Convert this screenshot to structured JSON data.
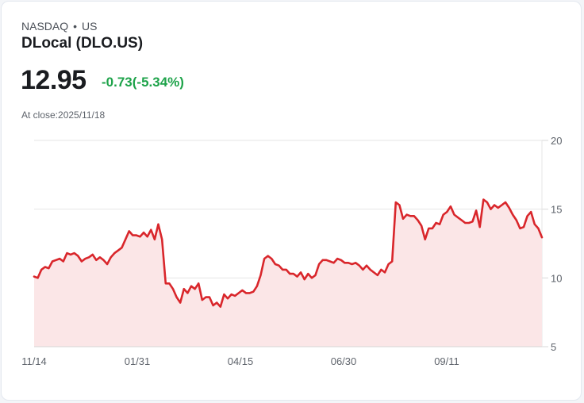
{
  "header": {
    "exchange": "NASDAQ",
    "separator": "•",
    "region": "US",
    "name": "DLocal (DLO.US)",
    "price": "12.95",
    "change": "-0.73(-5.34%)",
    "close_label": "At close:2025/11/18"
  },
  "colors": {
    "line": "#d9262b",
    "fill": "#fbe6e7",
    "change": "#1ea34a"
  },
  "chart_data": {
    "type": "area",
    "title": "DLocal (DLO.US)",
    "xlabel": "",
    "ylabel": "",
    "x_ticks": [
      "11/14",
      "01/31",
      "04/15",
      "06/30",
      "09/11"
    ],
    "y_ticks": [
      5,
      10,
      15,
      20
    ],
    "ylim": [
      5,
      20
    ],
    "grid": true,
    "y_axis_position": "right",
    "series": [
      {
        "name": "DLO.US",
        "values": [
          10.1,
          10.0,
          10.6,
          10.8,
          10.7,
          11.2,
          11.3,
          11.4,
          11.2,
          11.8,
          11.7,
          11.8,
          11.6,
          11.2,
          11.4,
          11.5,
          11.7,
          11.3,
          11.5,
          11.3,
          11.0,
          11.5,
          11.8,
          12.0,
          12.2,
          12.8,
          13.4,
          13.1,
          13.1,
          13.0,
          13.3,
          13.0,
          13.5,
          12.8,
          13.9,
          12.8,
          9.6,
          9.6,
          9.2,
          8.6,
          8.2,
          9.2,
          8.9,
          9.4,
          9.2,
          9.6,
          8.4,
          8.6,
          8.6,
          8.0,
          8.2,
          7.9,
          8.8,
          8.5,
          8.8,
          8.7,
          8.9,
          9.1,
          8.9,
          8.9,
          9.0,
          9.4,
          10.2,
          11.4,
          11.6,
          11.4,
          11.0,
          10.9,
          10.6,
          10.6,
          10.3,
          10.3,
          10.1,
          10.4,
          9.9,
          10.3,
          10.0,
          10.2,
          11.0,
          11.3,
          11.3,
          11.2,
          11.1,
          11.4,
          11.3,
          11.1,
          11.1,
          11.0,
          11.1,
          10.9,
          10.6,
          10.9,
          10.6,
          10.4,
          10.2,
          10.6,
          10.4,
          11.0,
          11.2,
          15.5,
          15.3,
          14.3,
          14.6,
          14.5,
          14.5,
          14.2,
          13.8,
          12.8,
          13.6,
          13.6,
          14.0,
          13.9,
          14.6,
          14.8,
          15.2,
          14.6,
          14.4,
          14.2,
          14.0,
          14.0,
          14.1,
          14.9,
          13.7,
          15.7,
          15.5,
          15.0,
          15.3,
          15.1,
          15.3,
          15.5,
          15.1,
          14.6,
          14.2,
          13.6,
          13.7,
          14.5,
          14.8,
          13.9,
          13.6,
          12.95
        ]
      }
    ]
  }
}
